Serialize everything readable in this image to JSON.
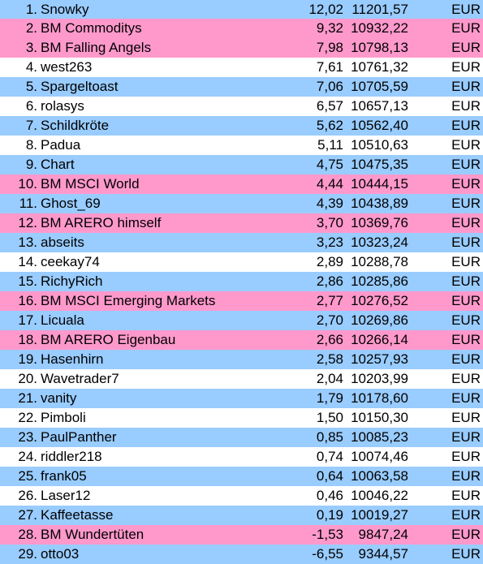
{
  "colors": {
    "row_blue": "#99ccff",
    "row_pink": "#ff99cc",
    "row_white": "#ffffff",
    "text": "#000000"
  },
  "rows": [
    {
      "rank": "1.",
      "name": "Snowky",
      "change": "12,02",
      "value": "11201,57",
      "currency": "EUR",
      "bg": "blue"
    },
    {
      "rank": "2.",
      "name": "BM Commoditys",
      "change": "9,32",
      "value": "10932,22",
      "currency": "EUR",
      "bg": "pink"
    },
    {
      "rank": "3.",
      "name": "BM Falling Angels",
      "change": "7,98",
      "value": "10798,13",
      "currency": "EUR",
      "bg": "pink"
    },
    {
      "rank": "4.",
      "name": "west263",
      "change": "7,61",
      "value": "10761,32",
      "currency": "EUR",
      "bg": "white"
    },
    {
      "rank": "5.",
      "name": "Spargeltoast",
      "change": "7,06",
      "value": "10705,59",
      "currency": "EUR",
      "bg": "blue"
    },
    {
      "rank": "6.",
      "name": "rolasys",
      "change": "6,57",
      "value": "10657,13",
      "currency": "EUR",
      "bg": "white"
    },
    {
      "rank": "7.",
      "name": "Schildkröte",
      "change": "5,62",
      "value": "10562,40",
      "currency": "EUR",
      "bg": "blue"
    },
    {
      "rank": "8.",
      "name": "Padua",
      "change": "5,11",
      "value": "10510,63",
      "currency": "EUR",
      "bg": "white"
    },
    {
      "rank": "9.",
      "name": "Chart",
      "change": "4,75",
      "value": "10475,35",
      "currency": "EUR",
      "bg": "blue"
    },
    {
      "rank": "10.",
      "name": "BM MSCI World",
      "change": "4,44",
      "value": "10444,15",
      "currency": "EUR",
      "bg": "pink"
    },
    {
      "rank": "11.",
      "name": "Ghost_69",
      "change": "4,39",
      "value": "10438,89",
      "currency": "EUR",
      "bg": "blue"
    },
    {
      "rank": "12.",
      "name": "BM ARERO himself",
      "change": "3,70",
      "value": "10369,76",
      "currency": "EUR",
      "bg": "pink"
    },
    {
      "rank": "13.",
      "name": "abseits",
      "change": "3,23",
      "value": "10323,24",
      "currency": "EUR",
      "bg": "blue"
    },
    {
      "rank": "14.",
      "name": "ceekay74",
      "change": "2,89",
      "value": "10288,78",
      "currency": "EUR",
      "bg": "white"
    },
    {
      "rank": "15.",
      "name": "RichyRich",
      "change": "2,86",
      "value": "10285,86",
      "currency": "EUR",
      "bg": "blue"
    },
    {
      "rank": "16.",
      "name": "BM MSCI Emerging Markets",
      "change": "2,77",
      "value": "10276,52",
      "currency": "EUR",
      "bg": "pink"
    },
    {
      "rank": "17.",
      "name": "Licuala",
      "change": "2,70",
      "value": "10269,86",
      "currency": "EUR",
      "bg": "blue"
    },
    {
      "rank": "18.",
      "name": "BM ARERO Eigenbau",
      "change": "2,66",
      "value": "10266,14",
      "currency": "EUR",
      "bg": "pink"
    },
    {
      "rank": "19.",
      "name": "Hasenhirn",
      "change": "2,58",
      "value": "10257,93",
      "currency": "EUR",
      "bg": "blue"
    },
    {
      "rank": "20.",
      "name": "Wavetrader7",
      "change": "2,04",
      "value": "10203,99",
      "currency": "EUR",
      "bg": "white"
    },
    {
      "rank": "21.",
      "name": "vanity",
      "change": "1,79",
      "value": "10178,60",
      "currency": "EUR",
      "bg": "blue"
    },
    {
      "rank": "22.",
      "name": "Pimboli",
      "change": "1,50",
      "value": "10150,30",
      "currency": "EUR",
      "bg": "white"
    },
    {
      "rank": "23.",
      "name": "PaulPanther",
      "change": "0,85",
      "value": "10085,23",
      "currency": "EUR",
      "bg": "blue"
    },
    {
      "rank": "24.",
      "name": "riddler218",
      "change": "0,74",
      "value": "10074,46",
      "currency": "EUR",
      "bg": "white"
    },
    {
      "rank": "25.",
      "name": "frank05",
      "change": "0,64",
      "value": "10063,58",
      "currency": "EUR",
      "bg": "blue"
    },
    {
      "rank": "26.",
      "name": "Laser12",
      "change": "0,46",
      "value": "10046,22",
      "currency": "EUR",
      "bg": "white"
    },
    {
      "rank": "27.",
      "name": "Kaffeetasse",
      "change": "0,19",
      "value": "10019,27",
      "currency": "EUR",
      "bg": "blue"
    },
    {
      "rank": "28.",
      "name": "BM Wundertüten",
      "change": "-1,53",
      "value": "9847,24",
      "currency": "EUR",
      "bg": "pink"
    },
    {
      "rank": "29.",
      "name": "otto03",
      "change": "-6,55",
      "value": "9344,57",
      "currency": "EUR",
      "bg": "blue"
    }
  ]
}
